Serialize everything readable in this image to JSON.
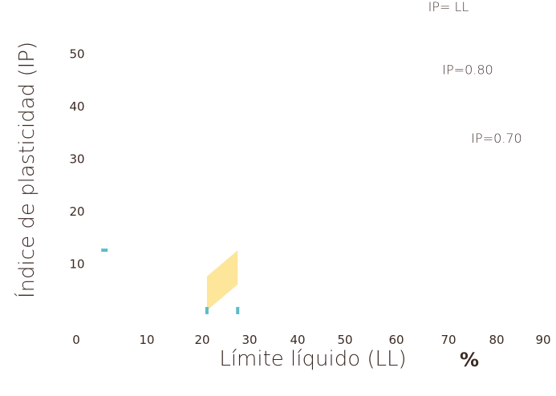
{
  "chart_data": {
    "type": "area",
    "title": "",
    "xlabel": "Límite líquido (LL)",
    "xunit": "%",
    "ylabel": "Índice de plasticidad (IP)",
    "xlim": [
      0,
      90
    ],
    "ylim": [
      0,
      60
    ],
    "x_ticks": [
      0,
      10,
      20,
      30,
      40,
      50,
      60,
      70,
      80,
      90
    ],
    "y_ticks": [
      10,
      20,
      30,
      40,
      50
    ],
    "grid": false,
    "annotations": [
      {
        "text": "IP= LL",
        "x": 70,
        "y": 58
      },
      {
        "text": "IP=0.80",
        "x": 74,
        "y": 46
      },
      {
        "text": "IP=0.70",
        "x": 80,
        "y": 33
      }
    ],
    "region": {
      "color": "#fde59a",
      "points": [
        [
          21,
          7.5
        ],
        [
          27.5,
          12.5
        ],
        [
          27.5,
          6
        ],
        [
          21,
          1
        ]
      ]
    },
    "markers": {
      "color": "#5bbcc8",
      "points": [
        [
          4,
          12.5
        ],
        [
          21,
          1
        ],
        [
          27.5,
          1
        ]
      ]
    }
  }
}
